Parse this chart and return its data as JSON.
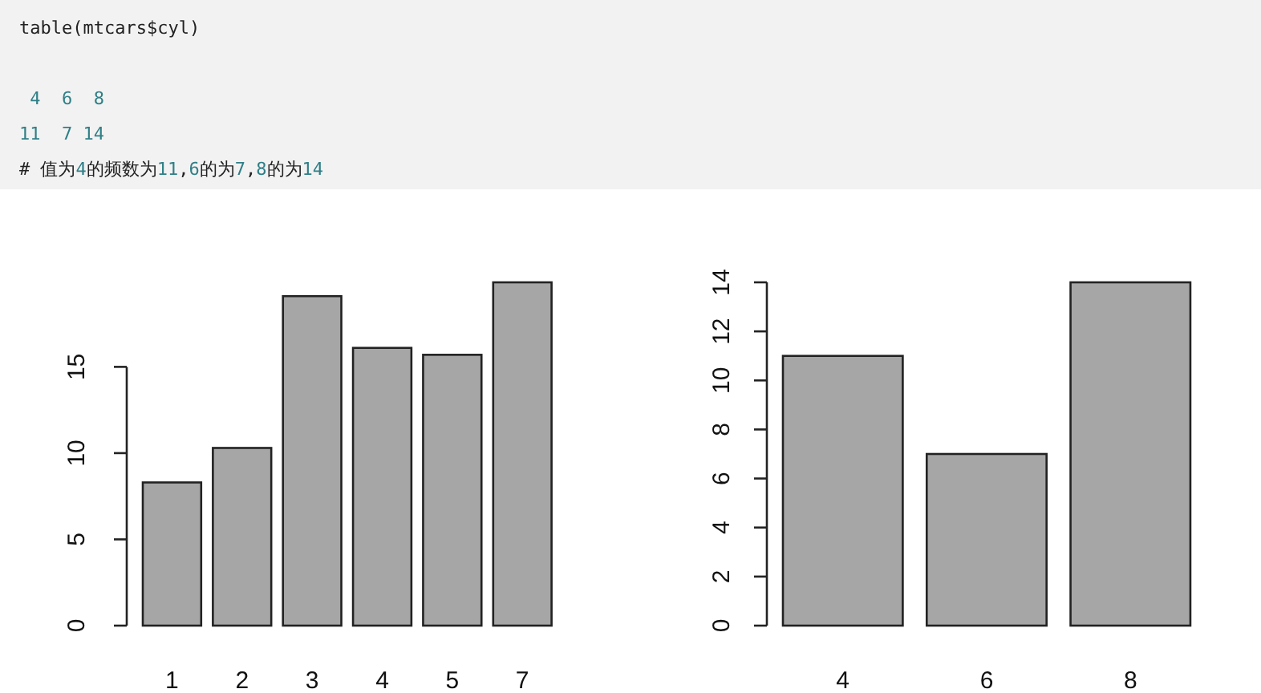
{
  "chart_data": [
    {
      "type": "other",
      "annotations": [
        "table(mtcars$cyl)",
        " 4  6  8",
        "11  7 14",
        "# 值为4的频数为11,6的为7,8的为14"
      ]
    },
    {
      "type": "bar",
      "categories": [
        "1",
        "2",
        "3",
        "4",
        "5",
        "7"
      ],
      "values": [
        8.3,
        10.3,
        19.1,
        16.1,
        15.7,
        19.9
      ],
      "color": "#a6a6a6",
      "ylim": [
        0,
        19.9
      ],
      "yticks": [
        0,
        5,
        10,
        15
      ]
    },
    {
      "type": "bar",
      "categories": [
        "4",
        "6",
        "8"
      ],
      "values": [
        11,
        7,
        14
      ],
      "color": "#a6a6a6",
      "ylim": [
        0,
        14
      ],
      "yticks": [
        0,
        2,
        4,
        6,
        8,
        10,
        12,
        14
      ]
    }
  ]
}
